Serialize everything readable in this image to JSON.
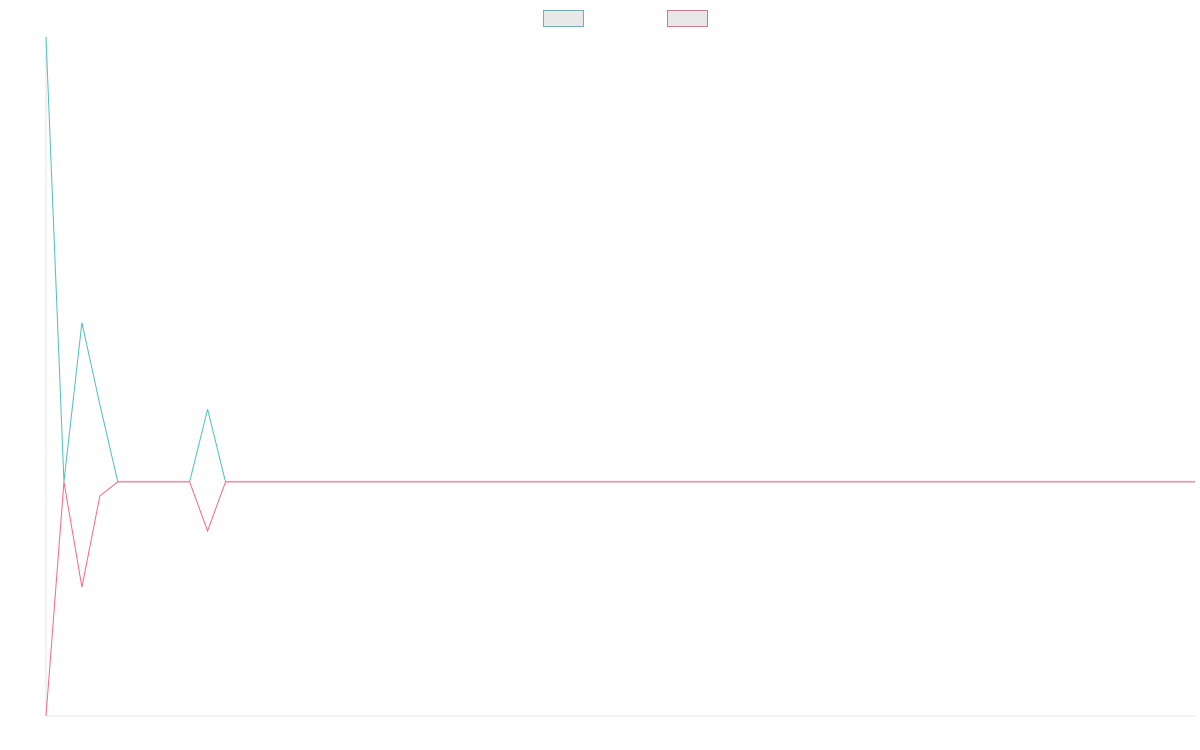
{
  "chart_data": {
    "type": "line",
    "title": "",
    "xlabel": "",
    "ylabel": "",
    "legend_position": "top-center",
    "grid": false,
    "x": [
      0,
      1,
      2,
      3,
      4,
      5,
      6,
      7,
      8,
      9,
      10,
      11,
      12,
      13,
      14,
      15,
      16,
      17,
      18,
      19,
      20,
      21,
      22,
      23,
      24,
      25,
      26,
      27,
      28,
      29,
      30,
      31,
      32,
      33,
      34,
      35,
      36,
      37,
      38,
      39,
      40,
      41,
      42,
      43,
      44,
      45,
      46,
      47,
      48,
      49,
      50,
      51,
      52,
      53,
      54,
      55,
      56,
      57,
      58,
      59,
      60,
      61,
      62,
      63,
      64
    ],
    "xlim": [
      0,
      64
    ],
    "ylim": [
      -1.0,
      1.9
    ],
    "series": [
      {
        "color": "#4bc0c0",
        "fill": "#e8e8e8",
        "values": [
          1.9,
          0,
          0.68,
          0.33,
          0,
          0,
          0,
          0,
          0,
          0.31,
          0,
          0,
          0,
          0,
          0,
          0,
          0,
          0,
          0,
          0,
          0,
          0,
          0,
          0,
          0,
          0,
          0,
          0,
          0,
          0,
          0,
          0,
          0,
          0,
          0,
          0,
          0,
          0,
          0,
          0,
          0,
          0,
          0,
          0,
          0,
          0,
          0,
          0,
          0,
          0,
          0,
          0,
          0,
          0,
          0,
          0,
          0,
          0,
          0,
          0,
          0,
          0,
          0,
          0,
          0
        ]
      },
      {
        "color": "#ff6384",
        "fill": "#e8e8e8",
        "values": [
          -1.0,
          0,
          -0.45,
          -0.06,
          0,
          0,
          0,
          0,
          0,
          -0.21,
          0,
          0,
          0,
          0,
          0,
          0,
          0,
          0,
          0,
          0,
          0,
          0,
          0,
          0,
          0,
          0,
          0,
          0,
          0,
          0,
          0,
          0,
          0,
          0,
          0,
          0,
          0,
          0,
          0,
          0,
          0,
          0,
          0,
          0,
          0,
          0,
          0,
          0,
          0,
          0,
          0,
          0,
          0,
          0,
          0,
          0,
          0,
          0,
          0,
          0,
          0,
          0,
          0,
          0,
          0
        ]
      }
    ]
  }
}
